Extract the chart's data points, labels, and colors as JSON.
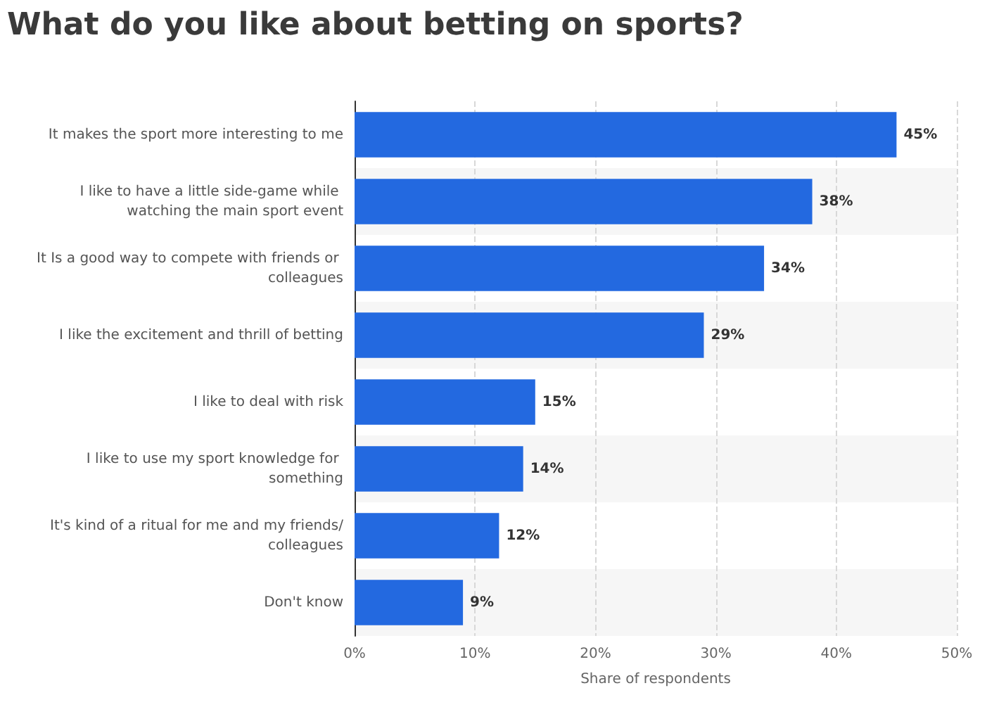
{
  "chart_data": {
    "type": "bar",
    "orientation": "horizontal",
    "title": "What do you like about betting on sports?",
    "xlabel": "Share of respondents",
    "categories": [
      "It makes the sport more interesting to me",
      "I like to have a little side-game while watching the main sport event",
      "It Is a good way to compete with friends or colleagues",
      "I like the excitement and thrill of betting",
      "I like to deal with risk",
      "I like to use my sport knowledge for something",
      "It's kind of a ritual for me and my friends/colleagues",
      "Don't know"
    ],
    "values": [
      45,
      38,
      34,
      29,
      15,
      14,
      12,
      9
    ],
    "value_labels": [
      "45%",
      "38%",
      "34%",
      "29%",
      "15%",
      "14%",
      "12%",
      "9%"
    ],
    "color": "#2369e0",
    "xlim": [
      0,
      50
    ],
    "xticks": [
      {
        "value": 0,
        "label": "0%"
      },
      {
        "value": 10,
        "label": "10%"
      },
      {
        "value": 20,
        "label": "20%"
      },
      {
        "value": 30,
        "label": "30%"
      },
      {
        "value": 40,
        "label": "40%"
      },
      {
        "value": 50,
        "label": "50%"
      }
    ],
    "grid": "x"
  }
}
